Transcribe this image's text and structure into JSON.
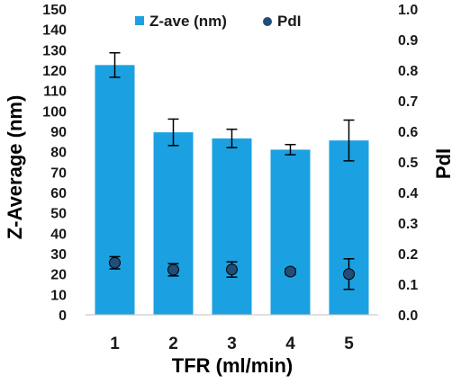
{
  "chart_data": {
    "type": "bar",
    "categories": [
      "1",
      "2",
      "3",
      "4",
      "5"
    ],
    "xlabel": "TFR (ml/min)",
    "ylabel_left": "Z-Average (nm)",
    "ylabel_right": "PdI",
    "ylim_left": [
      0,
      150
    ],
    "ylim_right": [
      0,
      1.0
    ],
    "yticks_left": [
      "0",
      "10",
      "20",
      "30",
      "40",
      "50",
      "60",
      "70",
      "80",
      "90",
      "100",
      "110",
      "120",
      "130",
      "140",
      "150"
    ],
    "yticks_right": [
      "0.0",
      "0.1",
      "0.2",
      "0.3",
      "0.4",
      "0.5",
      "0.6",
      "0.7",
      "0.8",
      "0.9",
      "1.0"
    ],
    "grid": false,
    "legend_position": "top",
    "series": [
      {
        "name": "Z-ave (nm)",
        "kind": "bar",
        "axis": "left",
        "color": "#1ba1e2",
        "values": [
          122.5,
          89.5,
          86.5,
          81.0,
          85.5
        ],
        "errors": [
          6.0,
          6.5,
          4.5,
          2.5,
          10.0
        ]
      },
      {
        "name": "PdI",
        "kind": "scatter",
        "axis": "right",
        "color": "#1f4e79",
        "values": [
          0.17,
          0.147,
          0.148,
          0.141,
          0.133
        ],
        "errors": [
          0.02,
          0.02,
          0.025,
          0.01,
          0.05
        ]
      }
    ]
  }
}
